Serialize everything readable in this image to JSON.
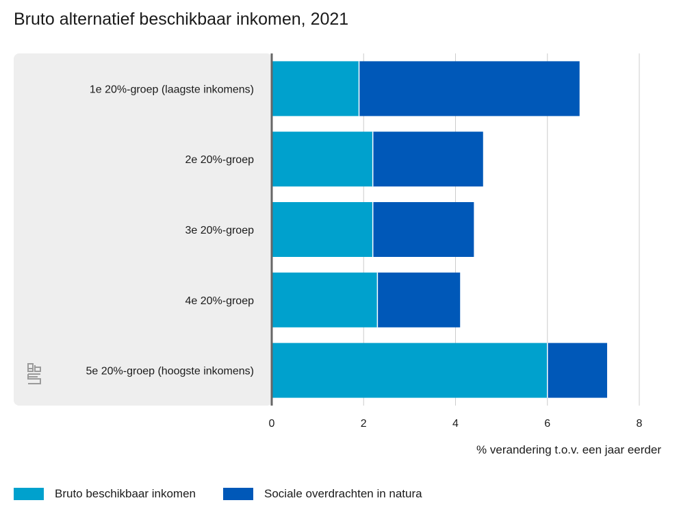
{
  "chart_data": {
    "type": "bar",
    "orientation": "horizontal",
    "stacked": true,
    "title": "Bruto alternatief beschikbaar inkomen, 2021",
    "xlabel": "% verandering t.o.v. een jaar eerder",
    "ylabel": "",
    "xlim": [
      0,
      8
    ],
    "xticks": [
      0,
      2,
      4,
      6,
      8
    ],
    "xtick_labels": [
      "0",
      "2",
      "4",
      "6",
      "8"
    ],
    "categories": [
      "1e 20%-groep (laagste inkomens)",
      "2e 20%-groep",
      "3e 20%-groep",
      "4e 20%-groep",
      "5e 20%-groep (hoogste inkomens)"
    ],
    "series": [
      {
        "name": "Bruto beschikbaar inkomen",
        "color": "#00a1cd",
        "values": [
          1.9,
          2.2,
          2.2,
          2.3,
          6.0
        ]
      },
      {
        "name": "Sociale overdrachten in natura",
        "color": "#0058b8",
        "values": [
          4.8,
          2.4,
          2.2,
          1.8,
          1.3
        ]
      }
    ],
    "grid": "vertical",
    "legend_position": "bottom-left"
  },
  "logo": {
    "name": "cbs-logo",
    "text": "cbs"
  }
}
